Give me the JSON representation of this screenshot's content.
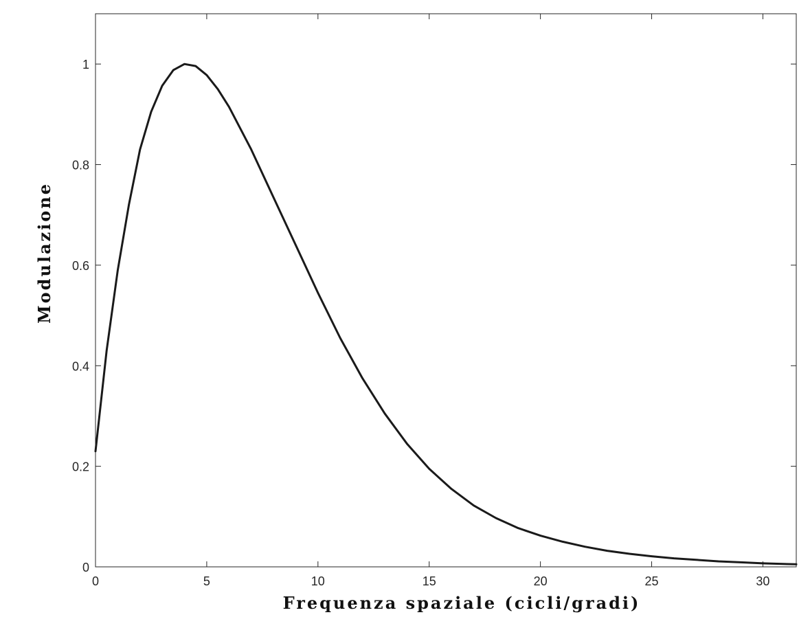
{
  "chart_data": {
    "type": "line",
    "title": "",
    "xlabel": "Frequenza spaziale (cicli/gradi)",
    "ylabel": "Modulazione",
    "xlim": [
      0,
      31.5
    ],
    "ylim": [
      0,
      1.1
    ],
    "xticks": [
      0,
      5,
      10,
      15,
      20,
      25,
      30
    ],
    "yticks": [
      0,
      0.2,
      0.4,
      0.6,
      0.8,
      1
    ],
    "xtick_labels": [
      "0",
      "5",
      "10",
      "15",
      "20",
      "25",
      "30"
    ],
    "ytick_labels": [
      "0",
      "0.2",
      "0.4",
      "0.6",
      "0.8",
      "1"
    ],
    "grid": false,
    "legend": "none",
    "line_color": "#1a1a1a",
    "series": [
      {
        "x": [
          0,
          0.5,
          1,
          1.5,
          2,
          2.5,
          3,
          3.5,
          4,
          4.5,
          5,
          5.5,
          6,
          7,
          8,
          9,
          10,
          11,
          12,
          13,
          14,
          15,
          16,
          17,
          18,
          19,
          20,
          21,
          22,
          23,
          24,
          25,
          26,
          27,
          28,
          29,
          30,
          31.5
        ],
        "values": [
          0.23,
          0.43,
          0.59,
          0.72,
          0.83,
          0.905,
          0.957,
          0.988,
          1.0,
          0.996,
          0.978,
          0.95,
          0.915,
          0.83,
          0.735,
          0.64,
          0.545,
          0.455,
          0.375,
          0.305,
          0.245,
          0.195,
          0.155,
          0.122,
          0.097,
          0.077,
          0.062,
          0.05,
          0.04,
          0.032,
          0.026,
          0.021,
          0.017,
          0.014,
          0.011,
          0.009,
          0.007,
          0.005
        ]
      }
    ]
  }
}
